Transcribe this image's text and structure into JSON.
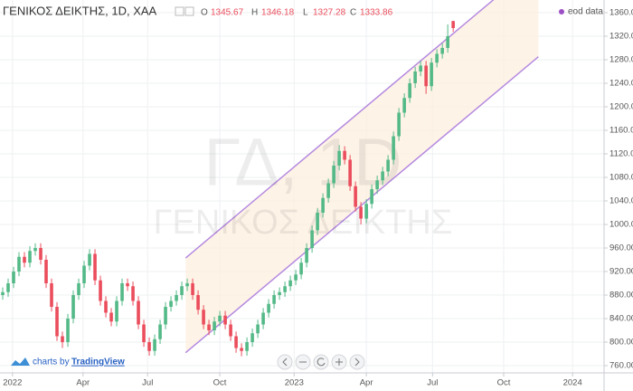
{
  "chart_data": {
    "type": "candlestick",
    "title": "ΓΕΝΙΚΟΣ ΔΕΙΚΤΗΣ, 1D, ΧΑΑ",
    "ohlc_labels": [
      "O",
      "H",
      "L",
      "C"
    ],
    "source_label": "eod data",
    "watermark": [
      "ΓΔ, 1D",
      "ΓΕΝΙΚΟΣ ΔΕΙΚΤΗΣ"
    ],
    "credit": [
      "charts by",
      "TradingView"
    ],
    "up_color": "#53b987",
    "down_color": "#eb4d5c",
    "grid": true,
    "x": [
      0,
      1,
      2,
      3,
      4,
      5,
      6,
      7,
      8,
      9,
      10,
      11,
      12,
      13,
      14,
      15,
      16,
      17,
      18,
      19,
      20,
      21,
      22,
      23,
      24,
      25,
      26,
      27,
      28,
      29,
      30,
      31,
      32,
      33,
      34,
      35,
      36,
      37,
      38,
      39,
      40,
      41,
      42,
      43,
      44,
      45,
      46,
      47,
      48,
      49,
      50,
      51,
      52,
      53,
      54,
      55,
      56,
      57,
      58,
      59,
      60,
      61,
      62,
      63,
      64,
      65,
      66,
      67,
      68,
      69,
      70,
      71,
      72,
      73,
      74,
      75,
      76,
      77,
      78,
      79,
      80,
      81,
      82,
      83
    ],
    "open": [
      880,
      885,
      900,
      920,
      945,
      935,
      955,
      960,
      940,
      900,
      860,
      810,
      800,
      840,
      880,
      900,
      930,
      950,
      905,
      870,
      850,
      835,
      870,
      900,
      895,
      870,
      830,
      800,
      785,
      805,
      830,
      860,
      870,
      880,
      895,
      900,
      880,
      855,
      830,
      820,
      835,
      845,
      830,
      810,
      790,
      785,
      800,
      815,
      830,
      850,
      865,
      880,
      885,
      895,
      905,
      915,
      935,
      960,
      990,
      1020,
      1045,
      1070,
      1100,
      1125,
      1110,
      1065,
      1030,
      1010,
      1035,
      1060,
      1075,
      1090,
      1110,
      1150,
      1190,
      1215,
      1240,
      1260,
      1270,
      1235,
      1275,
      1290,
      1300,
      1345.67
    ],
    "high": [
      893,
      908,
      928,
      953,
      953,
      963,
      968,
      968,
      948,
      908,
      868,
      818,
      848,
      888,
      908,
      938,
      958,
      958,
      913,
      878,
      858,
      878,
      908,
      908,
      903,
      878,
      838,
      808,
      813,
      838,
      868,
      878,
      888,
      903,
      908,
      908,
      888,
      863,
      838,
      843,
      853,
      853,
      838,
      818,
      798,
      808,
      823,
      838,
      858,
      873,
      888,
      893,
      903,
      913,
      923,
      943,
      968,
      998,
      1028,
      1053,
      1078,
      1108,
      1135,
      1133,
      1118,
      1073,
      1038,
      1043,
      1068,
      1083,
      1098,
      1118,
      1158,
      1198,
      1223,
      1248,
      1268,
      1278,
      1278,
      1283,
      1298,
      1308,
      1340,
      1346.18
    ],
    "low": [
      872,
      877,
      892,
      912,
      927,
      927,
      947,
      932,
      892,
      852,
      802,
      790,
      792,
      832,
      872,
      892,
      922,
      897,
      862,
      842,
      827,
      827,
      862,
      887,
      862,
      822,
      792,
      777,
      777,
      797,
      822,
      852,
      862,
      872,
      887,
      872,
      847,
      822,
      812,
      812,
      827,
      822,
      802,
      782,
      776,
      777,
      792,
      807,
      822,
      842,
      857,
      872,
      877,
      887,
      897,
      907,
      927,
      952,
      982,
      1012,
      1037,
      1062,
      1092,
      1102,
      1057,
      1022,
      1000,
      1002,
      1027,
      1052,
      1067,
      1082,
      1102,
      1142,
      1182,
      1207,
      1232,
      1252,
      1222,
      1227,
      1267,
      1282,
      1292,
      1327.28
    ],
    "close": [
      885,
      900,
      920,
      945,
      935,
      955,
      960,
      940,
      900,
      860,
      810,
      800,
      840,
      880,
      900,
      930,
      950,
      905,
      870,
      850,
      835,
      870,
      900,
      895,
      870,
      830,
      800,
      785,
      805,
      830,
      860,
      870,
      880,
      895,
      900,
      880,
      855,
      830,
      820,
      835,
      845,
      830,
      810,
      790,
      785,
      800,
      815,
      830,
      850,
      865,
      880,
      885,
      895,
      905,
      915,
      935,
      960,
      990,
      1020,
      1045,
      1070,
      1100,
      1125,
      1110,
      1065,
      1030,
      1010,
      1035,
      1060,
      1075,
      1090,
      1110,
      1150,
      1190,
      1215,
      1240,
      1260,
      1270,
      1235,
      1275,
      1290,
      1300,
      1320,
      1333.86
    ],
    "xlim": [
      -0.5,
      110.8
    ],
    "xticks": [
      {
        "value": 1.8,
        "label": "2022"
      },
      {
        "value": 14.8,
        "label": "Apr"
      },
      {
        "value": 26.7,
        "label": "Jul"
      },
      {
        "value": 40,
        "label": "Oct"
      },
      {
        "value": 53.7,
        "label": "2023"
      },
      {
        "value": 67,
        "label": "Apr"
      },
      {
        "value": 79.2,
        "label": "Jul"
      },
      {
        "value": 92.3,
        "label": "Oct"
      },
      {
        "value": 105,
        "label": "2024"
      }
    ],
    "ylim": [
      747.7,
      1381.5
    ],
    "yticks": [
      {
        "value": 760,
        "label": "760.00"
      },
      {
        "value": 800,
        "label": "800.00"
      },
      {
        "value": 840,
        "label": "840.00"
      },
      {
        "value": 880,
        "label": "880.00"
      },
      {
        "value": 920,
        "label": "920.00"
      },
      {
        "value": 960,
        "label": "960.00"
      },
      {
        "value": 1000,
        "label": "1000.00"
      },
      {
        "value": 1040,
        "label": "1040.00"
      },
      {
        "value": 1080,
        "label": "1080.00"
      },
      {
        "value": 1120,
        "label": "1120.00"
      },
      {
        "value": 1160,
        "label": "1160.00"
      },
      {
        "value": 1200,
        "label": "1200.00"
      },
      {
        "value": 1240,
        "label": "1240.00"
      },
      {
        "value": 1280,
        "label": "1280.00"
      },
      {
        "value": 1320,
        "label": "1320.00"
      },
      {
        "value": 1360,
        "label": "1360.00"
      }
    ],
    "channel": {
      "x": [
        33.7,
        98.7
      ],
      "upper": [
        943,
        1446
      ],
      "lower": [
        782,
        1285
      ],
      "line_color": "#b58ae0",
      "fill": "#fdeedd"
    }
  }
}
